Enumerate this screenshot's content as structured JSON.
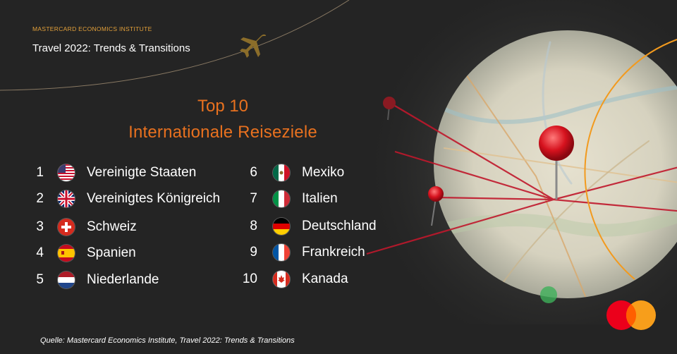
{
  "header": {
    "brand": "MASTERCARD ECONOMICS INSTITUTE",
    "subtitle": "Travel 2022: Trends & Transitions"
  },
  "title": {
    "line1": "Top 10",
    "line2": "Internationale  Reiseziele"
  },
  "colors": {
    "accent_orange": "#e8711f",
    "brand_gold": "#e3a03a",
    "background": "#242424",
    "mastercard_red": "#eb001b",
    "mastercard_yellow": "#f79e1b"
  },
  "icons": {
    "plane": "airplane-icon",
    "logo": "mastercard-logo"
  },
  "destinations": [
    {
      "rank": "1",
      "name": "Vereinigte Staaten",
      "flag": "flag-usa-icon"
    },
    {
      "rank": "2",
      "name": "Vereinigtes Königreich",
      "flag": "flag-uk-icon"
    },
    {
      "rank": "3",
      "name": "Schweiz",
      "flag": "flag-switzerland-icon"
    },
    {
      "rank": "4",
      "name": "Spanien",
      "flag": "flag-spain-icon"
    },
    {
      "rank": "5",
      "name": "Niederlande",
      "flag": "flag-netherlands-icon"
    },
    {
      "rank": "6",
      "name": "Mexiko",
      "flag": "flag-mexico-icon"
    },
    {
      "rank": "7",
      "name": "Italien",
      "flag": "flag-italy-icon"
    },
    {
      "rank": "8",
      "name": "Deutschland",
      "flag": "flag-germany-icon"
    },
    {
      "rank": "9",
      "name": "Frankreich",
      "flag": "flag-france-icon"
    },
    {
      "rank": "10",
      "name": "Kanada",
      "flag": "flag-canada-icon"
    }
  ],
  "footer": {
    "source": "Quelle: Mastercard Economics Institute, Travel 2022: Trends & Transitions"
  }
}
